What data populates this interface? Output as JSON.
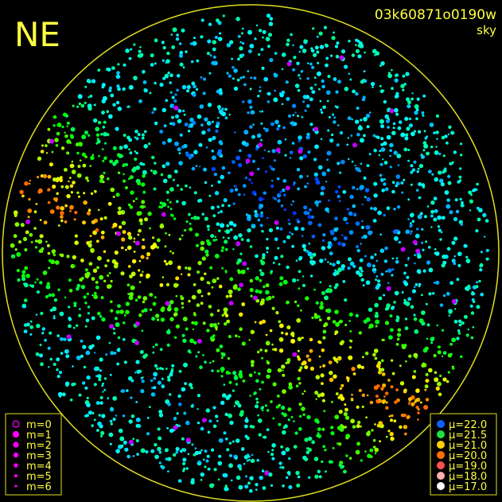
{
  "header": {
    "direction": "NE",
    "frame_id": "03k60871o0190w",
    "mode": "sky"
  },
  "magnitude_legend": {
    "color": "#ff00ff",
    "items": [
      "m=0",
      "m=1",
      "m=2",
      "m=3",
      "m=4",
      "m=5",
      "m=6"
    ]
  },
  "brightness_legend": {
    "items": [
      {
        "label": "μ=22.0",
        "color": "#1060ff"
      },
      {
        "label": "μ=21.5",
        "color": "#20e040"
      },
      {
        "label": "μ=21.0",
        "color": "#ffd000"
      },
      {
        "label": "μ=20.0",
        "color": "#ff7000"
      },
      {
        "label": "μ=19.0",
        "color": "#ff5050"
      },
      {
        "label": "μ=18.0",
        "color": "#ffb0b0"
      },
      {
        "label": "μ=17.0",
        "color": "#ffffff"
      }
    ]
  }
}
